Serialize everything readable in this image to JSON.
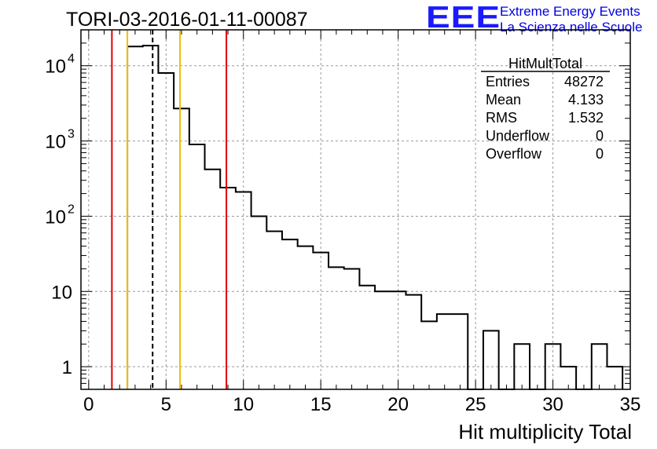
{
  "header": {
    "run_title": "TORI-03-2016-01-11-00087",
    "logo_text": "EEE",
    "logo_line1": "Extreme Energy Events",
    "logo_line2": "La Scienza nelle Scuole"
  },
  "colors": {
    "histogram": "#000000",
    "red_lines": "#e00000",
    "yellow_lines": "#f0c000",
    "grid": "#999999",
    "logo": "#1a1aff"
  },
  "chart_data": {
    "type": "bar",
    "style": "step-histogram",
    "title": "TORI-03-2016-01-11-00087",
    "xlabel": "Hit multiplicity Total",
    "ylabel": "",
    "xlim": [
      -0.5,
      35
    ],
    "ylim": [
      0.5,
      30000
    ],
    "log_y": true,
    "grid": true,
    "bin_width": 1,
    "bin_low_edges": [
      2.5,
      3.5,
      4.5,
      5.5,
      6.5,
      7.5,
      8.5,
      9.5,
      10.5,
      11.5,
      12.5,
      13.5,
      14.5,
      15.5,
      16.5,
      17.5,
      18.5,
      19.5,
      20.5,
      21.5,
      22.5,
      23.5,
      24.5,
      25.5,
      26.5,
      27.5,
      28.5,
      29.5,
      30.5,
      31.5,
      32.5,
      33.5
    ],
    "counts": [
      18000,
      18500,
      8000,
      2700,
      900,
      420,
      240,
      210,
      100,
      63,
      49,
      40,
      33,
      21,
      20,
      12,
      10,
      10,
      9,
      4,
      5,
      5,
      0,
      3,
      0,
      2,
      0,
      2,
      1,
      0,
      2,
      1
    ],
    "vertical_lines": [
      {
        "x": 1.5,
        "color": "red",
        "style": "solid"
      },
      {
        "x": 2.5,
        "color": "yellow",
        "style": "solid"
      },
      {
        "x": 4.133,
        "color": "black",
        "style": "dashed"
      },
      {
        "x": 5.9,
        "color": "yellow",
        "style": "solid"
      },
      {
        "x": 8.9,
        "color": "red",
        "style": "solid"
      }
    ],
    "x_ticks": [
      "0",
      "5",
      "10",
      "15",
      "20",
      "25",
      "30",
      "35"
    ],
    "x_tick_values": [
      0,
      5,
      10,
      15,
      20,
      25,
      30,
      35
    ],
    "y_ticks": [
      {
        "value": 1,
        "base": "1",
        "exp": ""
      },
      {
        "value": 10,
        "base": "10",
        "exp": ""
      },
      {
        "value": 100,
        "base": "10",
        "exp": "2"
      },
      {
        "value": 1000,
        "base": "10",
        "exp": "3"
      },
      {
        "value": 10000,
        "base": "10",
        "exp": "4"
      }
    ],
    "stats_box": {
      "name": "HitMultTotal",
      "rows": [
        {
          "label": "Entries",
          "value": "48272"
        },
        {
          "label": "Mean",
          "value": "4.133"
        },
        {
          "label": "RMS",
          "value": "1.532"
        },
        {
          "label": "Underflow",
          "value": "0"
        },
        {
          "label": "Overflow",
          "value": "0"
        }
      ]
    }
  }
}
